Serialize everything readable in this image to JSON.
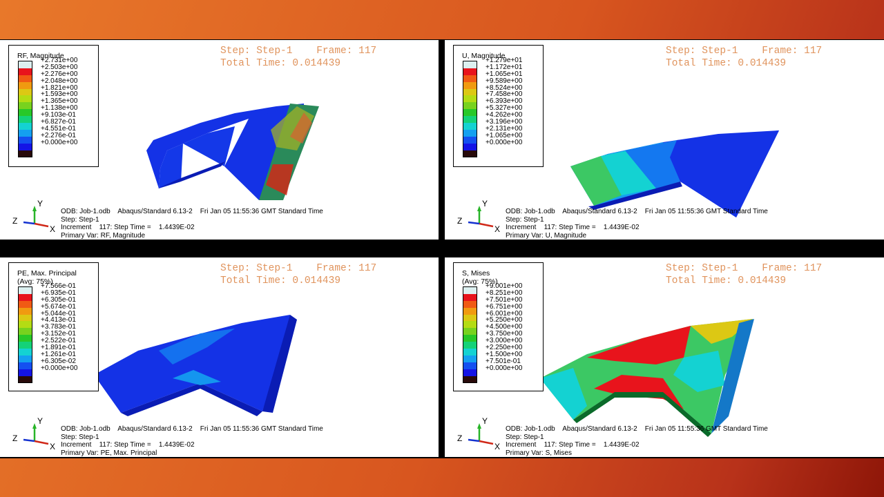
{
  "panels": [
    {
      "legend_title": "RF, Magnitude",
      "legend_values": [
        "+2.731e+00",
        "+2.503e+00",
        "+2.276e+00",
        "+2.048e+00",
        "+1.821e+00",
        "+1.593e+00",
        "+1.365e+00",
        "+1.138e+00",
        "+9.103e-01",
        "+6.827e-01",
        "+4.551e-01",
        "+2.276e-01",
        "+0.000e+00"
      ],
      "step_line": "Step: Step-1    Frame: 117",
      "time_line": "Total Time: 0.014439",
      "odb_line": "ODB: Job-1.odb    Abaqus/Standard 6.13-2    Fri Jan 05 11:55:36 GMT Standard Time",
      "step_name": "Step: Step-1",
      "increment_line": "Increment    117: Step Time =    1.4439E-02",
      "primary_var": "Primary Var: RF, Magnitude"
    },
    {
      "legend_title": "U, Magnitude",
      "legend_values": [
        "+1.279e+01",
        "+1.172e+01",
        "+1.065e+01",
        "+9.589e+00",
        "+8.524e+00",
        "+7.458e+00",
        "+6.393e+00",
        "+5.327e+00",
        "+4.262e+00",
        "+3.196e+00",
        "+2.131e+00",
        "+1.065e+00",
        "+0.000e+00"
      ],
      "step_line": "Step: Step-1    Frame: 117",
      "time_line": "Total Time: 0.014439",
      "odb_line": "ODB: Job-1.odb    Abaqus/Standard 6.13-2    Fri Jan 05 11:55:36 GMT Standard Time",
      "step_name": "Step: Step-1",
      "increment_line": "Increment    117: Step Time =    1.4439E-02",
      "primary_var": "Primary Var: U, Magnitude"
    },
    {
      "legend_title": "PE, Max. Principal\n(Avg: 75%)",
      "legend_values": [
        "+7.566e-01",
        "+6.935e-01",
        "+6.305e-01",
        "+5.674e-01",
        "+5.044e-01",
        "+4.413e-01",
        "+3.783e-01",
        "+3.152e-01",
        "+2.522e-01",
        "+1.891e-01",
        "+1.261e-01",
        "+6.305e-02",
        "+0.000e+00"
      ],
      "step_line": "Step: Step-1    Frame: 117",
      "time_line": "Total Time: 0.014439",
      "odb_line": "ODB: Job-1.odb    Abaqus/Standard 6.13-2    Fri Jan 05 11:55:36 GMT Standard Time",
      "step_name": "Step: Step-1",
      "increment_line": "Increment    117: Step Time =    1.4439E-02",
      "primary_var": "Primary Var: PE, Max. Principal"
    },
    {
      "legend_title": "S, Mises\n(Avg: 75%)",
      "legend_values": [
        "+9.001e+00",
        "+8.251e+00",
        "+7.501e+00",
        "+6.751e+00",
        "+6.001e+00",
        "+5.250e+00",
        "+4.500e+00",
        "+3.750e+00",
        "+3.000e+00",
        "+2.250e+00",
        "+1.500e+00",
        "+7.501e-01",
        "+0.000e+00"
      ],
      "step_line": "Step: Step-1    Frame: 117",
      "time_line": "Total Time: 0.014439",
      "odb_line": "ODB: Job-1.odb    Abaqus/Standard 6.13-2    Fri Jan 05 11:55:36 GMT Standard Time",
      "step_name": "Step: Step-1",
      "increment_line": "Increment    117: Step Time =    1.4439E-02",
      "primary_var": "Primary Var: S, Mises"
    }
  ],
  "axis_labels": {
    "x": "X",
    "y": "Y",
    "z": "Z"
  },
  "legend_colors": [
    "#dcf0f0",
    "#e8141c",
    "#f05a14",
    "#f09a10",
    "#dcc814",
    "#b4dc14",
    "#78d21e",
    "#28c828",
    "#14d278",
    "#14d2d2",
    "#14a0f0",
    "#1450f0",
    "#1414e6",
    "#280a0a"
  ],
  "colors": {
    "step_text": "#e0935c",
    "model_blue": "#1432e6",
    "model_dark": "#0a1cb4"
  }
}
